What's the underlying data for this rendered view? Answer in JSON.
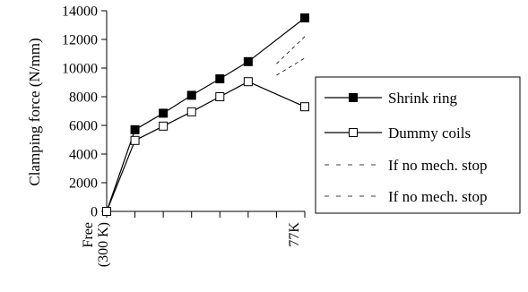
{
  "chart_data": {
    "type": "line",
    "title": "",
    "xlabel": "",
    "ylabel": "Clamping force (N/mm)",
    "ylim": [
      0,
      14000
    ],
    "yticks": [
      0,
      2000,
      4000,
      6000,
      8000,
      10000,
      12000,
      14000
    ],
    "x": [
      0,
      1,
      2,
      3,
      4,
      5,
      6,
      7
    ],
    "xlim": [
      0,
      7
    ],
    "x_tick_labels": [
      {
        "x": 0,
        "lines": [
          "Free",
          "(300 K)"
        ]
      },
      {
        "x": 7,
        "lines": [
          "77K"
        ]
      }
    ],
    "grid": false,
    "legend_position": "right",
    "series": [
      {
        "name": "Shrink ring",
        "marker": "filled-square",
        "style": "solid",
        "x": [
          0,
          1,
          2,
          3,
          4,
          5,
          6,
          7
        ],
        "values": [
          0,
          5700,
          6850,
          8100,
          9250,
          10450,
          null,
          13500
        ]
      },
      {
        "name": "Dummy coils",
        "marker": "open-square",
        "style": "solid",
        "x": [
          0,
          1,
          2,
          3,
          4,
          5,
          6,
          7
        ],
        "values": [
          0,
          4950,
          5950,
          6950,
          8000,
          9050,
          null,
          7300
        ]
      },
      {
        "name": "If no mech. stop",
        "marker": "none",
        "style": "dashed",
        "x": [
          6,
          7
        ],
        "values": [
          10300,
          12200
        ]
      },
      {
        "name": "If no mech. stop",
        "marker": "none",
        "style": "dashed",
        "x": [
          6,
          7
        ],
        "values": [
          9500,
          10700
        ]
      }
    ]
  }
}
